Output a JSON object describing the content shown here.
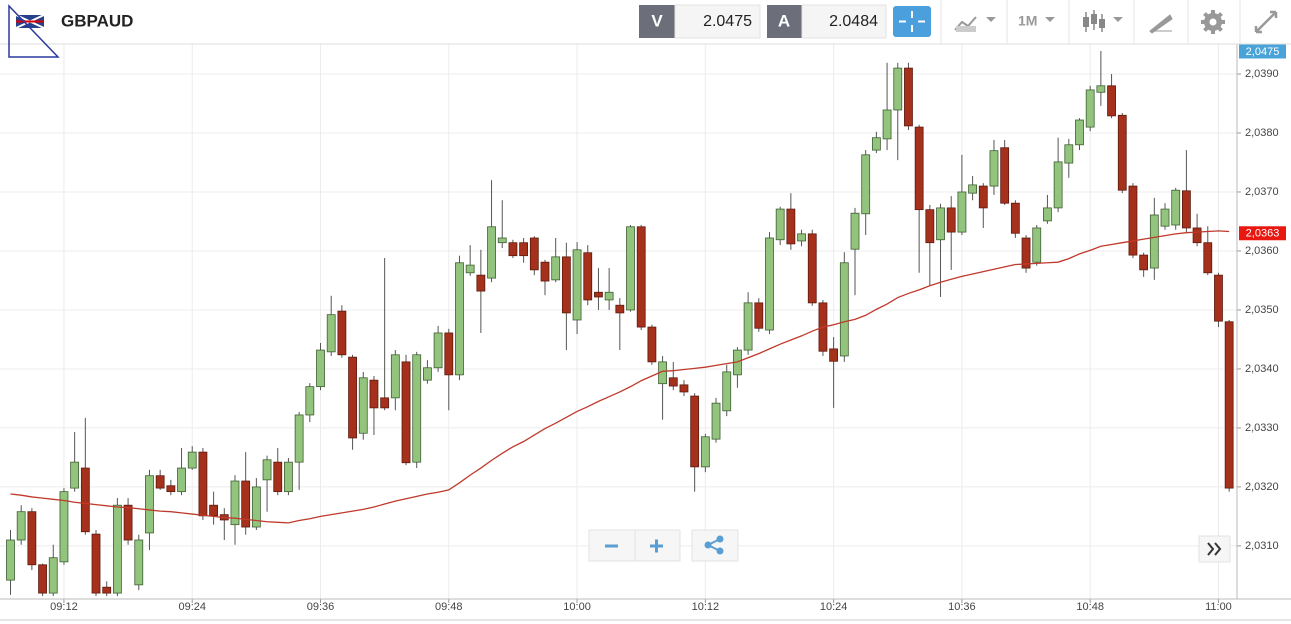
{
  "header": {
    "symbol": "GBPAUD",
    "bid_label": "V",
    "bid": "2.0475",
    "ask_label": "A",
    "ask": "2.0484",
    "timeframe": "1M"
  },
  "chart_data": {
    "type": "candlestick",
    "x": [
      "09:07",
      "09:08",
      "09:09",
      "09:10",
      "09:11",
      "09:12",
      "09:13",
      "09:14",
      "09:15",
      "09:16",
      "09:17",
      "09:18",
      "09:19",
      "09:20",
      "09:21",
      "09:22",
      "09:23",
      "09:24",
      "09:25",
      "09:26",
      "09:27",
      "09:28",
      "09:29",
      "09:30",
      "09:31",
      "09:32",
      "09:33",
      "09:34",
      "09:35",
      "09:36",
      "09:37",
      "09:38",
      "09:39",
      "09:40",
      "09:41",
      "09:42",
      "09:43",
      "09:44",
      "09:45",
      "09:46",
      "09:47",
      "09:48",
      "09:49",
      "09:50",
      "09:51",
      "09:52",
      "09:53",
      "09:54",
      "09:55",
      "09:56",
      "09:57",
      "09:58",
      "09:59",
      "10:00",
      "10:01",
      "10:02",
      "10:03",
      "10:04",
      "10:05",
      "10:06",
      "10:07",
      "10:08",
      "10:09",
      "10:10",
      "10:11",
      "10:12",
      "10:13",
      "10:14",
      "10:15",
      "10:16",
      "10:17",
      "10:18",
      "10:19",
      "10:20",
      "10:21",
      "10:22",
      "10:23",
      "10:24",
      "10:25",
      "10:26",
      "10:27",
      "10:28",
      "10:29",
      "10:30",
      "10:31",
      "10:32",
      "10:33",
      "10:34",
      "10:35",
      "10:36",
      "10:37",
      "10:38",
      "10:39",
      "10:40",
      "10:41",
      "10:42",
      "10:43",
      "10:44",
      "10:45",
      "10:46",
      "10:47",
      "10:48",
      "10:49",
      "10:50",
      "10:51",
      "10:52",
      "10:53",
      "10:54",
      "10:55",
      "10:56",
      "10:57",
      "10:58",
      "10:59",
      "11:00",
      "11:01"
    ],
    "open": [
      2.03042,
      2.0311,
      2.03158,
      2.03068,
      2.0302,
      2.03073,
      2.03198,
      2.03232,
      2.0312,
      2.0303,
      2.0302,
      2.03169,
      2.03034,
      2.03122,
      2.03219,
      2.03202,
      2.03192,
      2.03232,
      2.03259,
      2.03169,
      2.03153,
      2.03136,
      2.0321,
      2.03132,
      2.03212,
      2.03242,
      2.03192,
      2.03242,
      2.03322,
      2.0337,
      2.03429,
      2.03498,
      2.0342,
      2.03291,
      2.03381,
      2.03351,
      2.03351,
      2.03412,
      2.03242,
      2.03381,
      2.03402,
      2.03461,
      2.0339,
      2.03563,
      2.03559,
      2.03554,
      2.03614,
      2.03614,
      2.03614,
      2.03622,
      2.03581,
      2.03551,
      2.0359,
      2.03483,
      2.03597,
      2.0353,
      2.03517,
      2.03508,
      2.035,
      2.03641,
      2.03471,
      2.03375,
      2.03385,
      2.03373,
      2.03354,
      2.03234,
      2.03281,
      2.03329,
      2.0339,
      2.03432,
      2.03512,
      2.03466,
      2.03619,
      2.03671,
      2.03617,
      2.03629,
      2.03512,
      2.03434,
      2.03422,
      2.03603,
      2.03663,
      2.03771,
      2.0379,
      2.03839,
      2.0391,
      2.0381,
      2.0367,
      2.03619,
      2.03673,
      2.03632,
      2.03698,
      2.0371,
      2.0371,
      2.03775,
      2.03681,
      2.03622,
      2.03581,
      2.03651,
      2.03673,
      2.03749,
      2.0378,
      2.0381,
      2.03869,
      2.0388,
      2.0383,
      2.0371,
      2.03593,
      2.03571,
      2.03642,
      2.03644,
      2.03702,
      2.03639,
      2.03614,
      2.03559,
      2.0348
    ],
    "high": [
      2.03127,
      2.03169,
      2.03164,
      2.0307,
      2.03102,
      2.03198,
      2.03293,
      2.03317,
      2.03127,
      2.0304,
      2.03181,
      2.03181,
      2.03119,
      2.03229,
      2.03229,
      2.03212,
      2.03266,
      2.03269,
      2.03266,
      2.03192,
      2.03164,
      2.0322,
      2.03259,
      2.03215,
      2.03253,
      2.03266,
      2.03249,
      2.03327,
      2.03376,
      2.03444,
      2.03524,
      2.03508,
      2.03424,
      2.03395,
      2.03388,
      2.03588,
      2.03432,
      2.03424,
      2.03429,
      2.03415,
      2.03473,
      2.03468,
      2.03592,
      2.0361,
      2.03602,
      2.0372,
      2.03686,
      2.03619,
      2.03622,
      2.03625,
      2.03585,
      2.03622,
      2.03614,
      2.03615,
      2.0361,
      2.03571,
      2.03571,
      2.0352,
      2.03644,
      2.03644,
      2.03475,
      2.03422,
      2.03412,
      2.03381,
      2.03359,
      2.0329,
      2.03351,
      2.03407,
      2.03437,
      2.0353,
      2.0352,
      2.03632,
      2.03675,
      2.03698,
      2.03636,
      2.03636,
      2.03517,
      2.03454,
      2.03598,
      2.03673,
      2.03771,
      2.03802,
      2.03919,
      2.03919,
      2.03919,
      2.03814,
      2.03678,
      2.0368,
      2.03693,
      2.03763,
      2.03727,
      2.03715,
      2.03788,
      2.03788,
      2.03686,
      2.03627,
      2.03644,
      2.03695,
      2.03792,
      2.0379,
      2.03825,
      2.0388,
      2.03939,
      2.039,
      2.03834,
      2.03715,
      2.03597,
      2.0369,
      2.03681,
      2.03707,
      2.03771,
      2.03663,
      2.03642,
      2.03563,
      2.03483
    ],
    "low": [
      2.03017,
      2.03102,
      2.03059,
      2.03015,
      2.03015,
      2.03068,
      2.03192,
      2.03119,
      2.03015,
      2.03015,
      2.03015,
      2.03102,
      2.03025,
      2.03093,
      2.03195,
      2.03186,
      2.03186,
      2.03229,
      2.03144,
      2.03136,
      2.0311,
      2.03102,
      2.03119,
      2.03127,
      2.03158,
      2.03186,
      2.03186,
      2.03195,
      2.0331,
      2.03364,
      2.03422,
      2.03419,
      2.03263,
      2.0328,
      2.03288,
      2.0333,
      2.0333,
      2.03237,
      2.03232,
      2.03375,
      2.03395,
      2.0333,
      2.03381,
      2.03558,
      2.03461,
      2.03547,
      2.03605,
      2.03588,
      2.0358,
      2.03559,
      2.03525,
      2.03547,
      2.03432,
      2.03459,
      2.03508,
      2.035,
      2.035,
      2.03432,
      2.03497,
      2.03466,
      2.03407,
      2.03314,
      2.03364,
      2.03354,
      2.03192,
      2.03225,
      2.03275,
      2.0332,
      2.03368,
      2.03424,
      2.03463,
      2.03459,
      2.0361,
      2.03602,
      2.03608,
      2.03507,
      2.03422,
      2.03334,
      2.03412,
      2.03525,
      2.03627,
      2.03766,
      2.03771,
      2.03754,
      2.03805,
      2.03563,
      2.03542,
      2.03522,
      2.03568,
      2.03627,
      2.03686,
      2.03639,
      2.03695,
      2.03678,
      2.03622,
      2.03563,
      2.03575,
      2.03646,
      2.03666,
      2.03724,
      2.03771,
      2.03803,
      2.03846,
      2.03825,
      2.03698,
      2.03588,
      2.03556,
      2.03551,
      2.03636,
      2.03636,
      2.03632,
      2.03608,
      2.03559,
      2.03471,
      2.03192
    ],
    "close": [
      2.0311,
      2.03158,
      2.03068,
      2.0302,
      2.0308,
      2.03192,
      2.03242,
      2.03124,
      2.0302,
      2.0302,
      2.03169,
      2.0311,
      2.0311,
      2.03219,
      2.03198,
      2.03192,
      2.03232,
      2.03259,
      2.03151,
      2.03151,
      2.03144,
      2.0321,
      2.03132,
      2.032,
      2.03246,
      2.03192,
      2.03242,
      2.03322,
      2.0337,
      2.03432,
      2.03492,
      2.03424,
      2.03283,
      2.03385,
      2.03334,
      2.03334,
      2.03424,
      2.03241,
      2.03424,
      2.03402,
      2.03461,
      2.0339,
      2.0358,
      2.03576,
      2.03532,
      2.03641,
      2.03622,
      2.03592,
      2.03592,
      2.03568,
      2.03549,
      2.0359,
      2.03495,
      2.03602,
      2.03517,
      2.03522,
      2.0353,
      2.03495,
      2.03641,
      2.03471,
      2.03412,
      2.03412,
      2.03371,
      2.03361,
      2.03234,
      2.03285,
      2.03342,
      2.03395,
      2.03432,
      2.03512,
      2.03469,
      2.03622,
      2.03671,
      2.03612,
      2.03629,
      2.03512,
      2.0343,
      2.03413,
      2.0358,
      2.03664,
      2.03763,
      2.03792,
      2.03839,
      2.0391,
      2.03812,
      2.0367,
      2.03614,
      2.03673,
      2.03632,
      2.037,
      2.03712,
      2.03673,
      2.0377,
      2.03681,
      2.0363,
      2.03571,
      2.03639,
      2.03673,
      2.03751,
      2.0378,
      2.03822,
      2.03873,
      2.0388,
      2.03829,
      2.03703,
      2.03593,
      2.03568,
      2.03661,
      2.03671,
      2.03703,
      2.03639,
      2.03614,
      2.03563,
      2.03481,
      2.03198
    ],
    "ma": {
      "color": "#c0392b",
      "values": [
        2.03188,
        2.03186,
        2.03183,
        2.03181,
        2.03179,
        2.03177,
        2.03174,
        2.03172,
        2.0317,
        2.03168,
        2.03166,
        2.03165,
        2.03163,
        2.03161,
        2.03159,
        2.03158,
        2.03156,
        2.03154,
        2.03152,
        2.0315,
        2.03148,
        2.03147,
        2.03145,
        2.03143,
        2.03141,
        2.0314,
        2.03139,
        2.03143,
        2.03146,
        2.0315,
        2.03153,
        2.03156,
        2.03159,
        2.03162,
        2.03166,
        2.03171,
        2.03176,
        2.0318,
        2.03184,
        2.03188,
        2.03191,
        2.03195,
        2.03207,
        2.0322,
        2.03232,
        2.03245,
        2.03257,
        2.03268,
        2.03277,
        2.03288,
        2.03299,
        2.03308,
        2.03318,
        2.03328,
        2.03336,
        2.03345,
        2.03353,
        2.03361,
        2.0337,
        2.0338,
        2.03388,
        2.03396,
        2.03397,
        2.03399,
        2.03401,
        2.03403,
        2.03406,
        2.03409,
        2.03412,
        2.03419,
        2.03426,
        2.03434,
        2.03442,
        2.03449,
        2.03456,
        2.03464,
        2.03471,
        2.03475,
        2.0348,
        2.03484,
        2.03491,
        2.03501,
        2.0351,
        2.03521,
        2.03528,
        2.03534,
        2.03541,
        2.03547,
        2.03552,
        2.03557,
        2.03561,
        2.03565,
        2.03569,
        2.03573,
        2.03577,
        2.03578,
        2.03579,
        2.0358,
        2.03581,
        2.03587,
        2.03595,
        2.03601,
        2.03608,
        2.03611,
        2.03614,
        2.03617,
        2.0362,
        2.03623,
        2.03626,
        2.03629,
        2.03631,
        2.03632,
        2.03633,
        2.03634,
        2.03633
      ]
    },
    "ma_tag": {
      "value": 2.0363,
      "label": "2,0363"
    },
    "price_tag": "2,0475",
    "up_color": "#93c47d",
    "down_color": "#a5311c",
    "wick_color": "#555555",
    "ylim": [
      2.0301,
      2.0395
    ],
    "yticks": [
      {
        "value": 2.031,
        "label": "2,0310"
      },
      {
        "value": 2.032,
        "label": "2,0320"
      },
      {
        "value": 2.033,
        "label": "2,0330"
      },
      {
        "value": 2.034,
        "label": "2,0340"
      },
      {
        "value": 2.035,
        "label": "2,0350"
      },
      {
        "value": 2.036,
        "label": "2,0360"
      },
      {
        "value": 2.037,
        "label": "2,0370"
      },
      {
        "value": 2.038,
        "label": "2,0380"
      },
      {
        "value": 2.039,
        "label": "2,0390"
      }
    ],
    "xticks": [
      "09:12",
      "09:24",
      "09:36",
      "09:48",
      "10:00",
      "10:12",
      "10:24",
      "10:36",
      "10:48",
      "11:00"
    ],
    "grid": true
  }
}
